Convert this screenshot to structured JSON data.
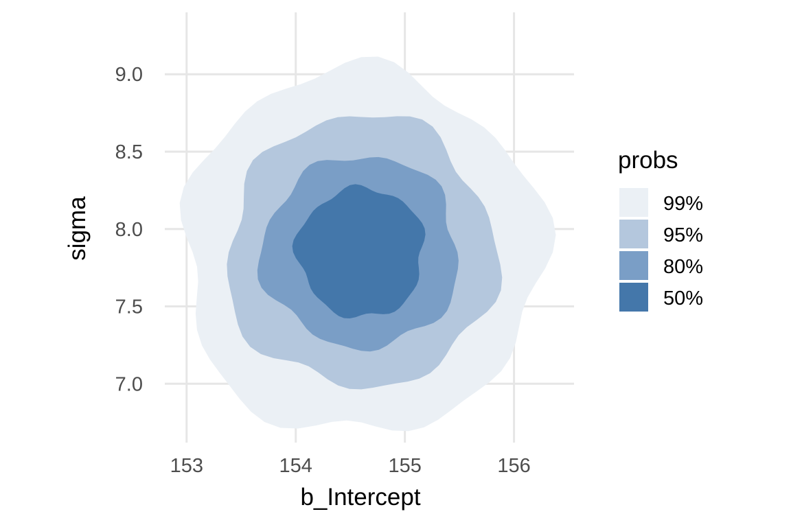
{
  "chart_data": {
    "type": "density-contour",
    "xlabel": "b_Intercept",
    "ylabel": "sigma",
    "xlim": [
      152.8,
      156.55
    ],
    "ylim": [
      6.62,
      9.4
    ],
    "x_ticks": [
      153,
      154,
      155,
      156
    ],
    "x_tick_labels": [
      "153",
      "154",
      "155",
      "156"
    ],
    "y_ticks": [
      7.0,
      7.5,
      8.0,
      8.5,
      9.0
    ],
    "y_tick_labels": [
      "7.0",
      "7.5",
      "8.0",
      "8.5",
      "9.0"
    ],
    "grid": true,
    "center": [
      154.6,
      7.85
    ],
    "legend": {
      "title": "probs",
      "placement": "right"
    },
    "levels": [
      {
        "label": "99%",
        "color": "#ebf0f5",
        "rx": 1.65,
        "ry": 1.18
      },
      {
        "label": "95%",
        "color": "#b4c7dd",
        "rx": 1.23,
        "ry": 0.88
      },
      {
        "label": "80%",
        "color": "#7a9ec6",
        "rx": 0.9,
        "ry": 0.62
      },
      {
        "label": "50%",
        "color": "#4477aa",
        "rx": 0.58,
        "ry": 0.42
      }
    ]
  }
}
